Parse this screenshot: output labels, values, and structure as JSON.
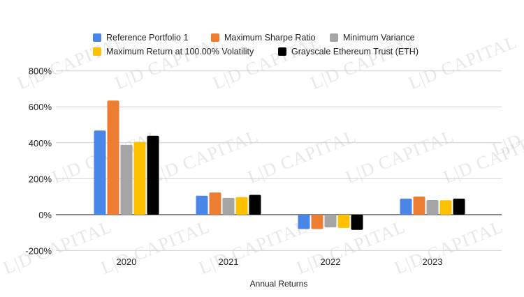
{
  "watermark": "L|D CAPITAL",
  "chart_data": {
    "type": "bar",
    "title": "",
    "xlabel": "Annual Returns",
    "ylabel": "",
    "categories": [
      "2020",
      "2021",
      "2022",
      "2023"
    ],
    "ylim": [
      -200,
      800
    ],
    "yticks": [
      -200,
      0,
      200,
      400,
      600,
      800
    ],
    "ytick_labels": [
      "-200%",
      "0%",
      "200%",
      "400%",
      "600%",
      "800%"
    ],
    "grid": true,
    "legend_position": "top",
    "series": [
      {
        "name": "Reference Portfolio 1",
        "color": "#4a86e8",
        "values": [
          468,
          105,
          -80,
          89
        ]
      },
      {
        "name": "Maximum Sharpe Ratio",
        "color": "#ed7d31",
        "values": [
          635,
          123,
          -80,
          101
        ]
      },
      {
        "name": "Minimum Variance",
        "color": "#a5a5a5",
        "values": [
          388,
          93,
          -71,
          81
        ]
      },
      {
        "name": "Maximum Return at 100.00% Volatility",
        "color": "#ffc000",
        "values": [
          405,
          98,
          -74,
          80
        ]
      },
      {
        "name": "Grayscale Ethereum Trust (ETH)",
        "color": "#000000",
        "values": [
          439,
          110,
          -85,
          89
        ]
      }
    ]
  }
}
